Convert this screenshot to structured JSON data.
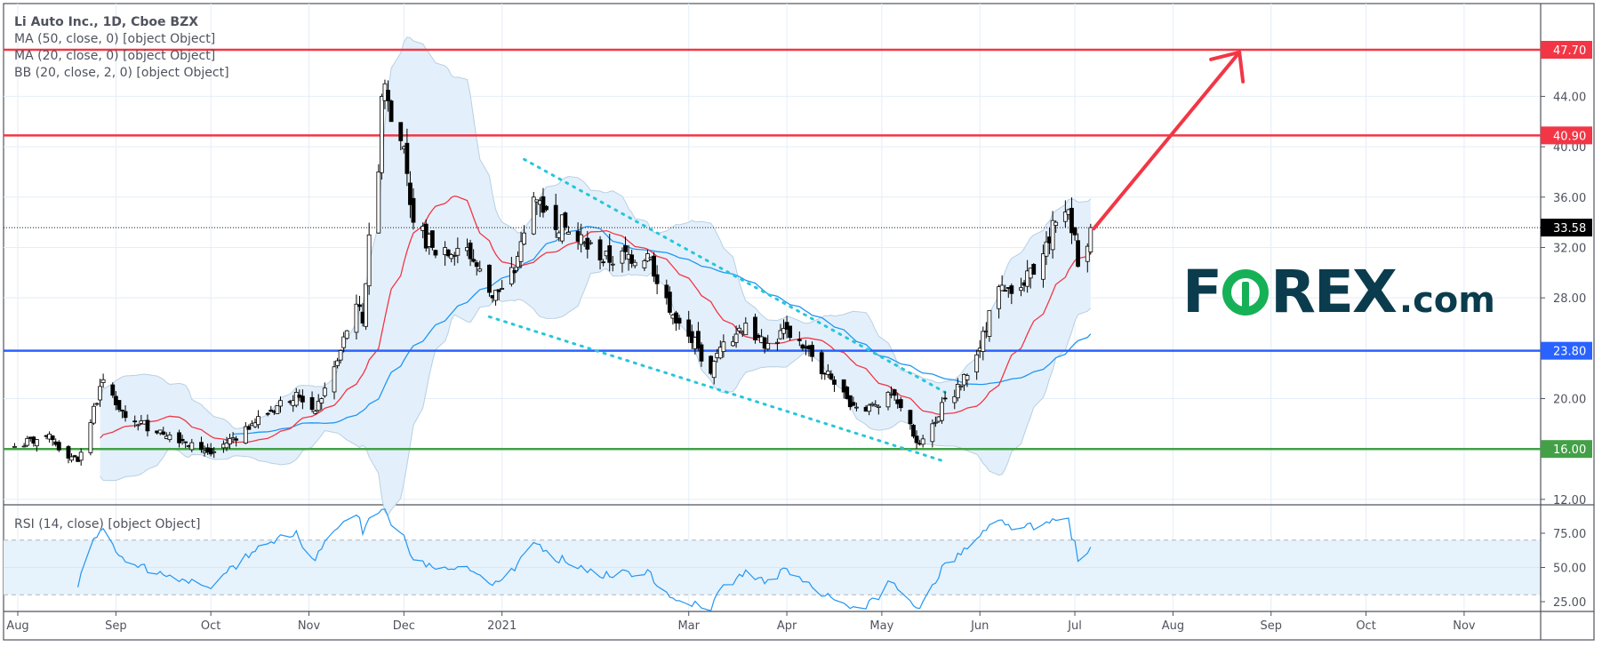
{
  "legend": {
    "title": "Li Auto Inc., 1D, Cboe BZX",
    "ma50": "MA (50, close, 0) [object Object]",
    "ma20": "MA (20, close, 0) [object Object]",
    "bb": "BB (20, close, 2, 0) [object Object]",
    "rsi": "RSI (14, close) [object Object]"
  },
  "logo": {
    "part1": "F",
    "part2": "REX",
    "part3": ".com"
  },
  "colors": {
    "resistance": "#f23645",
    "support_mid": "#2962ff",
    "support_low": "#43a047",
    "ma20": "#f23645",
    "ma50": "#2196f3",
    "bb_fill": "#e3f0fb",
    "bb_line": "#b8cfe2",
    "trend": "#26c6da",
    "logo_dark": "#0b3c4d",
    "logo_green": "#16b157"
  },
  "chart_data": {
    "type": "candlestick",
    "title": "Li Auto Inc., 1D, Cboe BZX",
    "ylim": [
      10,
      50
    ],
    "price_ticks": [
      "12.00",
      "20.00",
      "28.00",
      "32.00",
      "36.00",
      "40.00",
      "44.00"
    ],
    "rsi_ticks": [
      "25.00",
      "50.00",
      "75.00"
    ],
    "x_ticks": [
      "Aug",
      "Sep",
      "Oct",
      "Nov",
      "Dec",
      "2021",
      "Mar",
      "Apr",
      "May",
      "Jun",
      "Jul",
      "Aug",
      "Sep",
      "Oct",
      "Nov"
    ],
    "x_tick_dates": [
      "2020-08-01",
      "2020-09-01",
      "2020-10-01",
      "2020-11-01",
      "2020-12-01",
      "2021-01-01",
      "2021-03-01",
      "2021-04-01",
      "2021-05-01",
      "2021-06-01",
      "2021-07-01",
      "2021-08-01",
      "2021-09-01",
      "2021-10-01",
      "2021-11-01"
    ],
    "horizontal_levels": [
      {
        "value": 47.7,
        "label": "47.70",
        "color": "#f23645"
      },
      {
        "value": 40.9,
        "label": "40.90",
        "color": "#f23645"
      },
      {
        "value": 23.8,
        "label": "23.80",
        "color": "#2962ff"
      },
      {
        "value": 16.0,
        "label": "16.00",
        "color": "#43a047"
      }
    ],
    "last_price": {
      "value": 33.58,
      "label": "33.58"
    },
    "close_keypoints": [
      [
        "2020-07-31",
        16.2
      ],
      [
        "2020-08-10",
        17
      ],
      [
        "2020-08-20",
        15
      ],
      [
        "2020-08-28",
        21.5
      ],
      [
        "2020-09-04",
        18.5
      ],
      [
        "2020-09-15",
        17.5
      ],
      [
        "2020-09-25",
        16.5
      ],
      [
        "2020-10-01",
        15.6
      ],
      [
        "2020-10-14",
        18
      ],
      [
        "2020-10-28",
        20.5
      ],
      [
        "2020-11-03",
        19
      ],
      [
        "2020-11-10",
        23
      ],
      [
        "2020-11-16",
        27.5
      ],
      [
        "2020-11-18",
        26
      ],
      [
        "2020-11-20",
        33
      ],
      [
        "2020-11-23",
        38
      ],
      [
        "2020-11-24",
        44
      ],
      [
        "2020-11-25",
        45
      ],
      [
        "2020-11-27",
        42
      ],
      [
        "2020-12-01",
        40
      ],
      [
        "2020-12-04",
        34
      ],
      [
        "2020-12-10",
        32
      ],
      [
        "2020-12-21",
        32
      ],
      [
        "2020-12-29",
        28
      ],
      [
        "2021-01-05",
        30
      ],
      [
        "2021-01-11",
        36
      ],
      [
        "2021-01-15",
        35
      ],
      [
        "2021-01-25",
        32.5
      ],
      [
        "2021-02-01",
        31
      ],
      [
        "2021-02-16",
        31.5
      ],
      [
        "2021-02-22",
        28
      ],
      [
        "2021-02-25",
        26
      ],
      [
        "2021-03-04",
        24
      ],
      [
        "2021-03-08",
        22
      ],
      [
        "2021-03-12",
        24.5
      ],
      [
        "2021-03-19",
        26
      ],
      [
        "2021-03-25",
        24
      ],
      [
        "2021-04-01",
        25.5
      ],
      [
        "2021-04-07",
        24
      ],
      [
        "2021-04-13",
        22
      ],
      [
        "2021-04-20",
        20
      ],
      [
        "2021-04-26",
        19
      ],
      [
        "2021-05-03",
        20.5
      ],
      [
        "2021-05-10",
        18
      ],
      [
        "2021-05-12",
        16.5
      ],
      [
        "2021-05-17",
        18
      ],
      [
        "2021-05-21",
        20
      ],
      [
        "2021-05-26",
        21
      ],
      [
        "2021-06-01",
        24
      ],
      [
        "2021-06-04",
        27
      ],
      [
        "2021-06-08",
        29
      ],
      [
        "2021-06-15",
        29
      ],
      [
        "2021-06-21",
        31.5
      ],
      [
        "2021-06-25",
        34
      ],
      [
        "2021-06-29",
        35
      ],
      [
        "2021-07-01",
        33
      ],
      [
        "2021-07-02",
        30.5
      ],
      [
        "2021-07-06",
        33.58
      ]
    ],
    "indicators": [
      "MA 50",
      "MA 20",
      "Bollinger Bands 20, 2",
      "RSI 14"
    ],
    "rsi_bands": [
      30,
      70
    ],
    "trendlines": [
      {
        "from": [
          "2021-01-08",
          39
        ],
        "to": [
          "2021-05-21",
          20.5
        ]
      },
      {
        "from": [
          "2020-12-28",
          26.5
        ],
        "to": [
          "2021-05-21",
          15
        ]
      }
    ],
    "projection_arrow": {
      "from": [
        "2021-07-07",
        33.5
      ],
      "to": [
        "2021-08-22",
        47.5
      ]
    }
  }
}
